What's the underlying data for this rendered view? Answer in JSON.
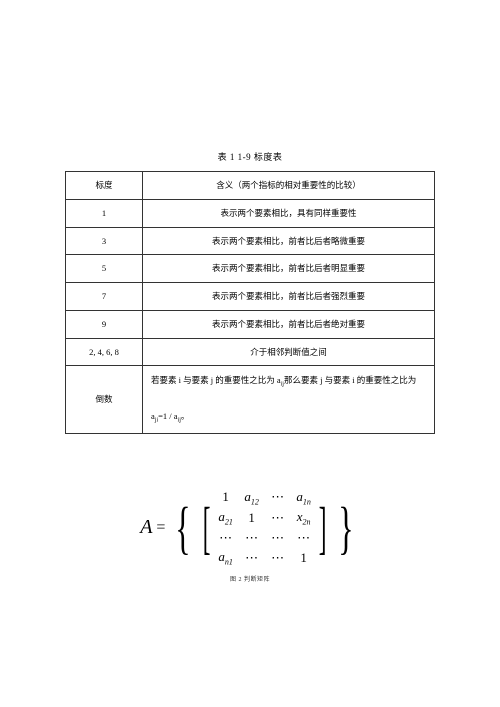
{
  "table": {
    "caption": "表 1 1-9 标度表",
    "header": {
      "col1": "标度",
      "col2": "含义（两个指标的相对重要性的比较）"
    },
    "rows": [
      {
        "scale": "1",
        "meaning": "表示两个要素相比，具有同样重要性"
      },
      {
        "scale": "3",
        "meaning": "表示两个要素相比，前者比后者略微重要"
      },
      {
        "scale": "5",
        "meaning": "表示两个要素相比，前者比后者明显重要"
      },
      {
        "scale": "7",
        "meaning": "表示两个要素相比，前者比后者强烈重要"
      },
      {
        "scale": "9",
        "meaning": "表示两个要素相比，前者比后者绝对重要"
      },
      {
        "scale": "2, 4, 6, 8",
        "meaning": "介于相邻判断值之间"
      }
    ],
    "last_row": {
      "label": "倒数",
      "line1_a": "若要素 i 与要素 j 的重要性之比为 a",
      "line1_b": "那么要素 j 与要素 i 的重要性之比为",
      "line2_a": "a",
      "line2_b": "=1 / a",
      "sub_ij": "ij",
      "sub_ji": "ji"
    },
    "border_color": "#333333",
    "background_color": "#ffffff"
  },
  "matrix": {
    "lhs": "A",
    "eq": "=",
    "cells": [
      [
        "1",
        "a_12",
        "⋯",
        "a_1n"
      ],
      [
        "a_21",
        "1",
        "⋯",
        "x_2n"
      ],
      [
        "⋯",
        "⋯",
        "⋯",
        "⋯"
      ],
      [
        "a_n1",
        "⋯",
        "⋯",
        "1"
      ]
    ],
    "caption": "图 2 判断矩阵"
  },
  "style": {
    "page_bg": "#ffffff",
    "text_color": "#000000",
    "font_main": "SimSun",
    "font_math": "Times New Roman"
  }
}
